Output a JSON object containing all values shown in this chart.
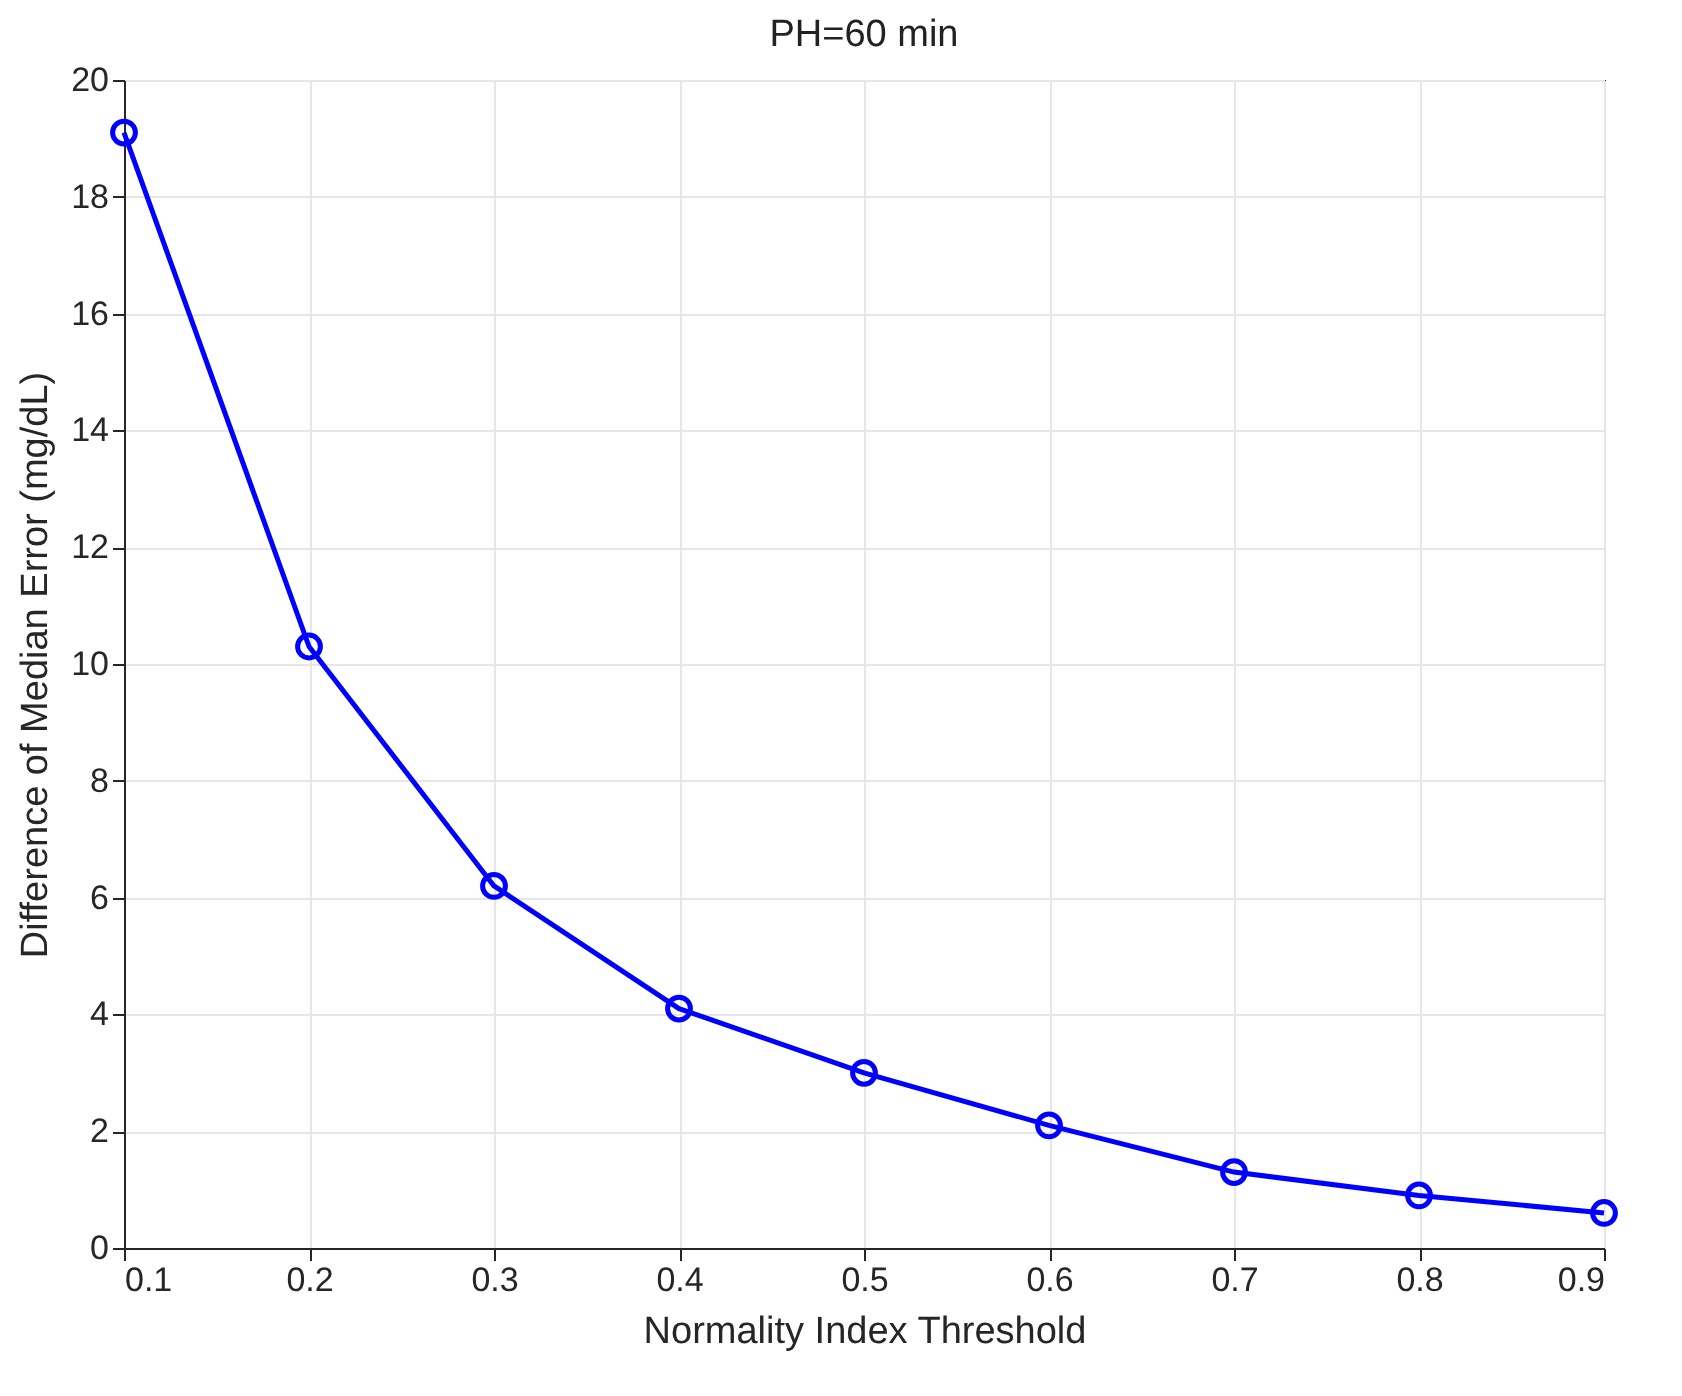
{
  "chart_data": {
    "type": "line",
    "title": "PH=60 min",
    "xlabel": "Normality Index Threshold",
    "ylabel": "Difference of Median Error (mg/dL)",
    "x": [
      0.1,
      0.2,
      0.3,
      0.4,
      0.5,
      0.6,
      0.7,
      0.8,
      0.9
    ],
    "series": [
      {
        "color": "#0000ff",
        "values": [
          19.1,
          10.3,
          6.2,
          4.1,
          3.0,
          2.1,
          1.3,
          0.9,
          0.6
        ]
      }
    ],
    "xlim": [
      0.1,
      0.9
    ],
    "xticks": [
      0.1,
      0.2,
      0.3,
      0.4,
      0.5,
      0.6,
      0.7,
      0.8,
      0.9
    ],
    "ylim": [
      0,
      20
    ],
    "yticks": [
      0,
      2,
      4,
      6,
      8,
      10,
      12,
      14,
      16,
      18,
      20
    ],
    "grid": true,
    "marker": "circle",
    "line_style": "solid"
  }
}
